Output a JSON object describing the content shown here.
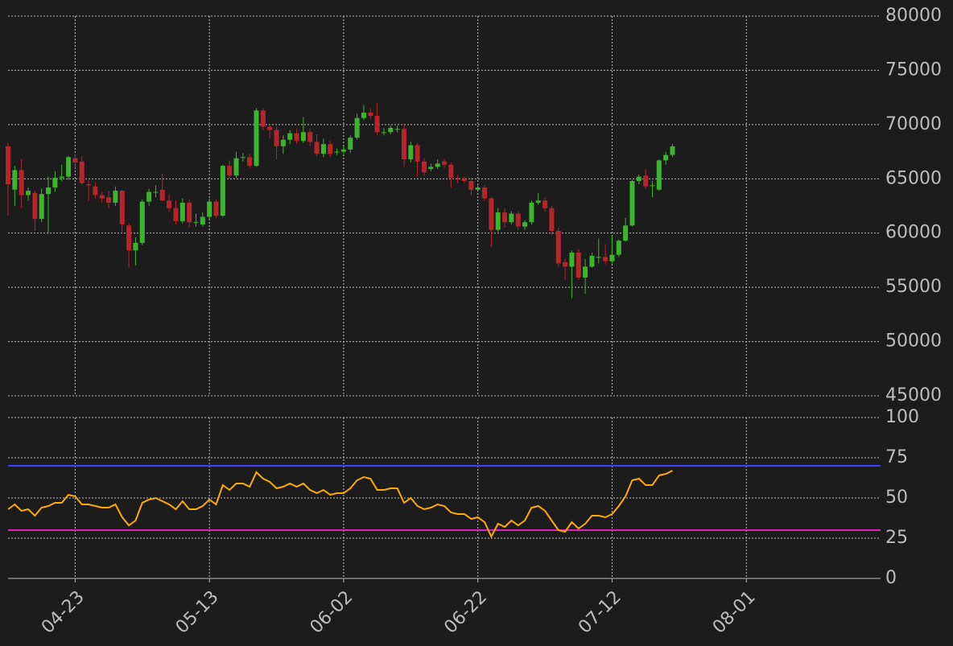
{
  "chart_data": [
    {
      "type": "candlestick",
      "x": [
        "04-13",
        "04-14",
        "04-15",
        "04-16",
        "04-17",
        "04-18",
        "04-19",
        "04-20",
        "04-21",
        "04-22",
        "04-23",
        "04-24",
        "04-25",
        "04-26",
        "04-27",
        "04-28",
        "04-29",
        "04-30",
        "05-01",
        "05-02",
        "05-03",
        "05-04",
        "05-05",
        "05-06",
        "05-07",
        "05-08",
        "05-09",
        "05-10",
        "05-11",
        "05-12",
        "05-13",
        "05-14",
        "05-15",
        "05-16",
        "05-17",
        "05-18",
        "05-19",
        "05-20",
        "05-21",
        "05-22",
        "05-23",
        "05-24",
        "05-25",
        "05-26",
        "05-27",
        "05-28",
        "05-29",
        "05-30",
        "05-31",
        "06-01",
        "06-02",
        "06-03",
        "06-04",
        "06-05",
        "06-06",
        "06-07",
        "06-08",
        "06-09",
        "06-10",
        "06-11",
        "06-12",
        "06-13",
        "06-14",
        "06-15",
        "06-16",
        "06-17",
        "06-18",
        "06-19",
        "06-20",
        "06-21",
        "06-22",
        "06-23",
        "06-24",
        "06-25",
        "06-26",
        "06-27",
        "06-28",
        "06-29",
        "06-30",
        "07-01",
        "07-02",
        "07-03",
        "07-04",
        "07-05",
        "07-06",
        "07-07",
        "07-08",
        "07-09",
        "07-10",
        "07-11",
        "07-12",
        "07-13",
        "07-14",
        "07-15",
        "07-16",
        "07-17",
        "07-18",
        "07-19",
        "07-20",
        "07-21"
      ],
      "open": [
        68000,
        64000,
        65800,
        63500,
        63700,
        61300,
        63600,
        64200,
        65100,
        65200,
        66900,
        66600,
        64500,
        64300,
        63500,
        63300,
        62800,
        63900,
        60700,
        58400,
        59100,
        62900,
        63800,
        64000,
        63000,
        62300,
        61100,
        62800,
        61000,
        60800,
        61500,
        62900,
        61600,
        66200,
        65300,
        67000,
        67000,
        66200,
        71300,
        69800,
        69500,
        68000,
        68600,
        69200,
        68500,
        69300,
        68400,
        67300,
        68200,
        67500,
        67500,
        67700,
        68800,
        70600,
        71100,
        70800,
        69300,
        69300,
        69600,
        69600,
        66800,
        68100,
        66600,
        65900,
        66100,
        66600,
        66300,
        65100,
        65000,
        64800,
        64000,
        64200,
        63200,
        60300,
        61900,
        61000,
        61800,
        60600,
        61000,
        62800,
        63000,
        62300,
        60200,
        57300,
        56900,
        58200,
        55900,
        56900,
        57800,
        57800,
        57400,
        58000,
        59300,
        60700,
        64800,
        65300,
        64400,
        64000,
        66700,
        67200
      ],
      "high": [
        68300,
        66200,
        66800,
        64200,
        63900,
        64100,
        65200,
        65700,
        66300,
        67100,
        67300,
        67100,
        64900,
        64700,
        63800,
        63900,
        64300,
        64000,
        60900,
        59600,
        63100,
        64100,
        64400,
        65500,
        63600,
        63000,
        63200,
        63100,
        61800,
        61900,
        63200,
        63100,
        66300,
        66700,
        67500,
        67400,
        67300,
        71500,
        71500,
        70100,
        69800,
        69000,
        69500,
        69600,
        70700,
        69600,
        69100,
        68700,
        68500,
        67800,
        68000,
        69000,
        71000,
        71800,
        71500,
        72000,
        69700,
        69900,
        69900,
        70000,
        68400,
        68300,
        66900,
        66400,
        66800,
        66800,
        66500,
        65400,
        65200,
        65100,
        64500,
        64400,
        63300,
        62300,
        62300,
        62000,
        62000,
        61200,
        63000,
        63700,
        63300,
        62500,
        60500,
        57600,
        58400,
        58500,
        57600,
        58200,
        59500,
        59000,
        59700,
        59400,
        61400,
        64900,
        65400,
        65900,
        64800,
        66800,
        67500,
        68200
      ],
      "low": [
        61600,
        62500,
        62300,
        63000,
        60200,
        61000,
        60000,
        63800,
        64800,
        64900,
        66000,
        64400,
        63000,
        63200,
        62800,
        62300,
        62500,
        60000,
        56800,
        57000,
        58900,
        62500,
        63300,
        62900,
        62000,
        60800,
        60900,
        60500,
        60600,
        60600,
        61300,
        61400,
        61500,
        65000,
        65100,
        66600,
        66000,
        66100,
        69500,
        68700,
        66800,
        67300,
        68200,
        68200,
        68300,
        68000,
        67100,
        67000,
        67000,
        67200,
        67300,
        67400,
        68600,
        70400,
        70500,
        69000,
        69000,
        69100,
        69300,
        66100,
        66500,
        65200,
        65300,
        65700,
        65900,
        66000,
        64200,
        64600,
        64600,
        63500,
        63900,
        63000,
        58700,
        60100,
        60500,
        60800,
        60300,
        60300,
        60800,
        62600,
        62000,
        59800,
        56900,
        55700,
        54000,
        55700,
        54400,
        56800,
        57200,
        57100,
        57200,
        57800,
        59200,
        60600,
        64500,
        64100,
        63300,
        63900,
        66300,
        67000
      ],
      "close": [
        64500,
        65800,
        63500,
        63900,
        61300,
        63600,
        64200,
        65100,
        65200,
        67000,
        66500,
        64600,
        64400,
        63500,
        63200,
        62800,
        63900,
        60800,
        58400,
        59100,
        62900,
        63800,
        63800,
        63000,
        62300,
        61100,
        62800,
        61000,
        61000,
        61500,
        62900,
        61600,
        66200,
        65300,
        66900,
        67000,
        66200,
        71300,
        69800,
        69500,
        68000,
        68600,
        69200,
        68500,
        69300,
        68400,
        67300,
        68200,
        67300,
        67500,
        67700,
        68800,
        70600,
        71100,
        70800,
        69300,
        69300,
        69700,
        69600,
        66800,
        68100,
        66600,
        65600,
        66100,
        66400,
        66300,
        65100,
        65000,
        64800,
        64000,
        64200,
        63200,
        60300,
        61900,
        61000,
        61800,
        60600,
        61000,
        62800,
        63000,
        62300,
        60200,
        57200,
        56900,
        58200,
        55900,
        56900,
        57900,
        57800,
        57400,
        58000,
        59300,
        60700,
        64800,
        65200,
        64300,
        64400,
        66700,
        67200,
        68000
      ],
      "up_color": "#3cb52e",
      "down_color": "#b8242c",
      "xlim": [
        "04-13",
        "08-21"
      ],
      "xticks": [
        "04-23",
        "05-13",
        "06-02",
        "06-22",
        "07-12",
        "08-01"
      ],
      "ylim": [
        45000,
        80000
      ],
      "yticks": [
        45000,
        50000,
        55000,
        60000,
        65000,
        70000,
        75000,
        80000
      ],
      "grid": true
    },
    {
      "type": "line",
      "x": [
        "04-13",
        "04-14",
        "04-15",
        "04-16",
        "04-17",
        "04-18",
        "04-19",
        "04-20",
        "04-21",
        "04-22",
        "04-23",
        "04-24",
        "04-25",
        "04-26",
        "04-27",
        "04-28",
        "04-29",
        "04-30",
        "05-01",
        "05-02",
        "05-03",
        "05-04",
        "05-05",
        "05-06",
        "05-07",
        "05-08",
        "05-09",
        "05-10",
        "05-11",
        "05-12",
        "05-13",
        "05-14",
        "05-15",
        "05-16",
        "05-17",
        "05-18",
        "05-19",
        "05-20",
        "05-21",
        "05-22",
        "05-23",
        "05-24",
        "05-25",
        "05-26",
        "05-27",
        "05-28",
        "05-29",
        "05-30",
        "05-31",
        "06-01",
        "06-02",
        "06-03",
        "06-04",
        "06-05",
        "06-06",
        "06-07",
        "06-08",
        "06-09",
        "06-10",
        "06-11",
        "06-12",
        "06-13",
        "06-14",
        "06-15",
        "06-16",
        "06-17",
        "06-18",
        "06-19",
        "06-20",
        "06-21",
        "06-22",
        "06-23",
        "06-24",
        "06-25",
        "06-26",
        "06-27",
        "06-28",
        "06-29",
        "06-30",
        "07-01",
        "07-02",
        "07-03",
        "07-04",
        "07-05",
        "07-06",
        "07-07",
        "07-08",
        "07-09",
        "07-10",
        "07-11",
        "07-12",
        "07-13",
        "07-14",
        "07-15",
        "07-16",
        "07-17",
        "07-18",
        "07-19",
        "07-20",
        "07-21"
      ],
      "series": [
        {
          "color": "#ffaa00",
          "values": [
            43,
            46,
            42,
            43,
            39,
            44,
            45,
            47,
            47,
            52,
            51,
            46,
            46,
            45,
            44,
            44,
            46,
            38,
            33,
            36,
            47,
            49,
            50,
            48,
            46,
            43,
            48,
            43,
            43,
            45,
            49,
            46,
            58,
            55,
            59,
            59,
            57,
            66,
            62,
            60,
            56,
            57,
            59,
            57,
            59,
            55,
            53,
            55,
            52,
            53,
            53,
            56,
            61,
            63,
            62,
            55,
            55,
            56,
            56,
            47,
            50,
            45,
            43,
            44,
            46,
            45,
            41,
            40,
            40,
            37,
            38,
            35,
            26,
            34,
            32,
            36,
            33,
            36,
            44,
            45,
            42,
            36,
            30,
            29,
            35,
            31,
            34,
            39,
            39,
            38,
            40,
            45,
            51,
            61,
            62,
            58,
            58,
            64,
            65,
            67
          ]
        }
      ],
      "hlines": [
        {
          "value": 70,
          "color": "#4040ff"
        },
        {
          "value": 30,
          "color": "#e020c0"
        }
      ],
      "xlim": [
        "04-13",
        "08-21"
      ],
      "xticks": [
        "04-23",
        "05-13",
        "06-02",
        "06-22",
        "07-12",
        "08-01"
      ],
      "ylim": [
        0,
        100
      ],
      "yticks": [
        0,
        25,
        50,
        75,
        100
      ],
      "grid": true
    }
  ]
}
